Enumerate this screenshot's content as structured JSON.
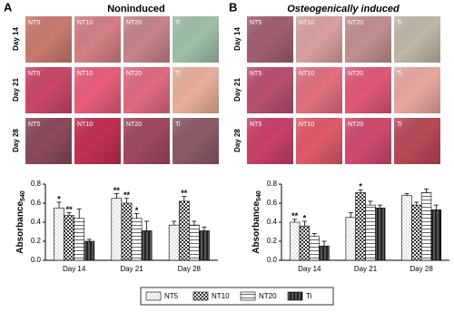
{
  "panels": [
    {
      "letter": "A",
      "title": "Noninduced",
      "rows": [
        "Day 14",
        "Day 21",
        "Day 28"
      ],
      "tile_labels": [
        "NT5",
        "NT10",
        "NT20",
        "Ti"
      ]
    },
    {
      "letter": "B",
      "title": "Osteogenically induced",
      "rows": [
        "Day 14",
        "Day 21",
        "Day 28"
      ],
      "tile_labels": [
        "NT5",
        "NT10",
        "NT20",
        "Ti"
      ]
    }
  ],
  "chart_data": [
    {
      "type": "bar",
      "y_label": "Absorbance",
      "y_label_sub": "540",
      "categories": [
        "Day 14",
        "Day 21",
        "Day 28"
      ],
      "ylim": [
        0,
        0.8
      ],
      "yticks": [
        {
          "value": 0,
          "label": "0.0"
        },
        {
          "value": 0.2,
          "label": "0.2"
        },
        {
          "value": 0.4,
          "label": "0.4"
        },
        {
          "value": 0.6,
          "label": "0.6"
        },
        {
          "value": 0.8,
          "label": "0.8"
        }
      ],
      "series": [
        {
          "name": "NT5",
          "color": "#9a9a9a",
          "pattern": "dots",
          "values": [
            0.55,
            0.65,
            0.37
          ],
          "errors": [
            0.06,
            0.05,
            0.04
          ],
          "stars": [
            "*",
            "**",
            null
          ]
        },
        {
          "name": "NT10",
          "color": "#333333",
          "pattern": "checker",
          "values": [
            0.47,
            0.6,
            0.62
          ],
          "errors": [
            0.03,
            0.05,
            0.05
          ],
          "stars": [
            "**",
            "**",
            "**"
          ]
        },
        {
          "name": "NT20",
          "color": "#666666",
          "pattern": "hlines",
          "values": [
            0.44,
            0.44,
            0.37
          ],
          "errors": [
            0.1,
            0.05,
            0.04
          ],
          "stars": [
            null,
            "*",
            null
          ]
        },
        {
          "name": "Ti",
          "color": "#222222",
          "pattern": "vstripes",
          "values": [
            0.2,
            0.31,
            0.31
          ],
          "errors": [
            0.02,
            0.1,
            0.04
          ],
          "stars": [
            null,
            null,
            null
          ]
        }
      ]
    },
    {
      "type": "bar",
      "y_label": "Absorbance",
      "y_label_sub": "540",
      "categories": [
        "Day 14",
        "Day 21",
        "Day 28"
      ],
      "ylim": [
        0,
        0.8
      ],
      "yticks": [
        {
          "value": 0,
          "label": "0.0"
        },
        {
          "value": 0.2,
          "label": "0.2"
        },
        {
          "value": 0.4,
          "label": "0.4"
        },
        {
          "value": 0.6,
          "label": "0.6"
        },
        {
          "value": 0.8,
          "label": "0.8"
        }
      ],
      "series": [
        {
          "color": "#9a9a9a",
          "pattern": "dots",
          "values": [
            0.4,
            0.45,
            0.68
          ],
          "errors": [
            0.03,
            0.05,
            0.02
          ],
          "stars": [
            "**",
            null,
            null
          ]
        },
        {
          "color": "#333333",
          "pattern": "checker",
          "values": [
            0.36,
            0.71,
            0.58
          ],
          "errors": [
            0.05,
            0.03,
            0.03
          ],
          "stars": [
            "*",
            "*",
            null
          ]
        },
        {
          "color": "#666666",
          "pattern": "hlines",
          "values": [
            0.25,
            0.58,
            0.71
          ],
          "errors": [
            0.03,
            0.04,
            0.04
          ],
          "stars": [
            null,
            null,
            null
          ]
        },
        {
          "color": "#222222",
          "pattern": "vstripes",
          "values": [
            0.15,
            0.55,
            0.53
          ],
          "errors": [
            0.05,
            0.03,
            0.05
          ],
          "stars": [
            null,
            null,
            null
          ]
        }
      ]
    }
  ]
}
